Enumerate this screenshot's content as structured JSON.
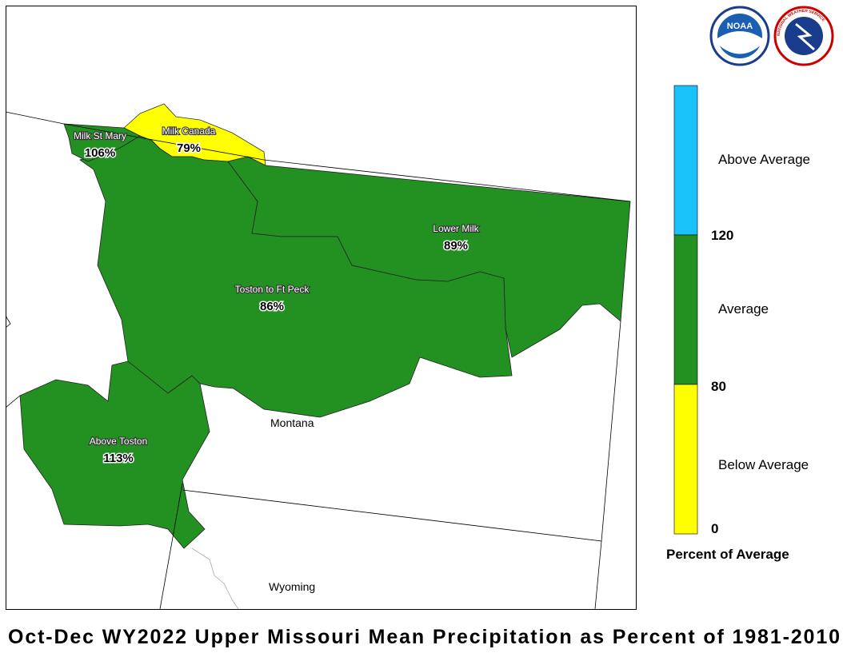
{
  "header": {
    "title": "Oct-Dec WY2022 Upper Missouri Mean Precipitation as Percent of 1981-2010"
  },
  "logos": {
    "noaa": "NOAA",
    "nws": "NATIONAL WEATHER SERVICE"
  },
  "map": {
    "regions": [
      {
        "name": "Milk St Mary",
        "value": "106%"
      },
      {
        "name": "Milk Canada",
        "value": "79%"
      },
      {
        "name": "Lower Milk",
        "value": "89%"
      },
      {
        "name": "Toston to Ft Peck",
        "value": "86%"
      },
      {
        "name": "Above Toston",
        "value": "113%"
      }
    ],
    "states": [
      "Montana",
      "Wyoming"
    ]
  },
  "legend": {
    "title": "Percent of Average",
    "classes": [
      "Above Average",
      "Average",
      "Below Average"
    ],
    "ticks": [
      "120",
      "80",
      "0"
    ]
  }
}
